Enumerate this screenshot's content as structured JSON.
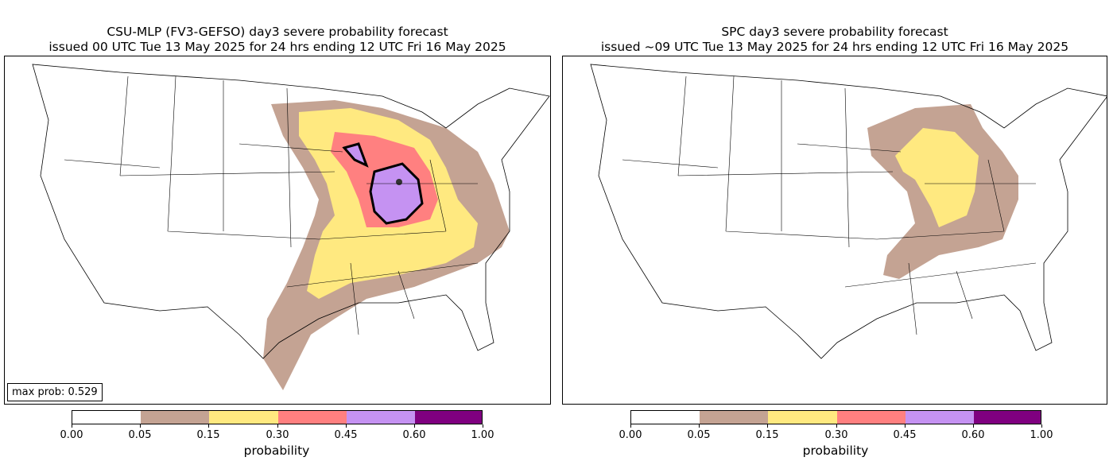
{
  "left_panel": {
    "title_line1": "CSU-MLP (FV3-GEFSO) day3 severe probability forecast",
    "title_line2": "issued 00 UTC Tue 13 May 2025 for 24 hrs ending 12 UTC Fri 16 May 2025",
    "max_prob_label": "max prob: 0.529"
  },
  "right_panel": {
    "title_line1": "SPC day3 severe probability forecast",
    "title_line2": "issued ~09 UTC Tue 13 May 2025 for 24 hrs ending 12 UTC Fri 16 May 2025"
  },
  "colorbar": {
    "label": "probability",
    "ticks": [
      "0.00",
      "0.05",
      "0.15",
      "0.30",
      "0.45",
      "0.60",
      "1.00"
    ],
    "colors": [
      "#ffffff",
      "#c4a393",
      "#ffe980",
      "#ff8080",
      "#c592f2",
      "#7f0080"
    ]
  }
}
